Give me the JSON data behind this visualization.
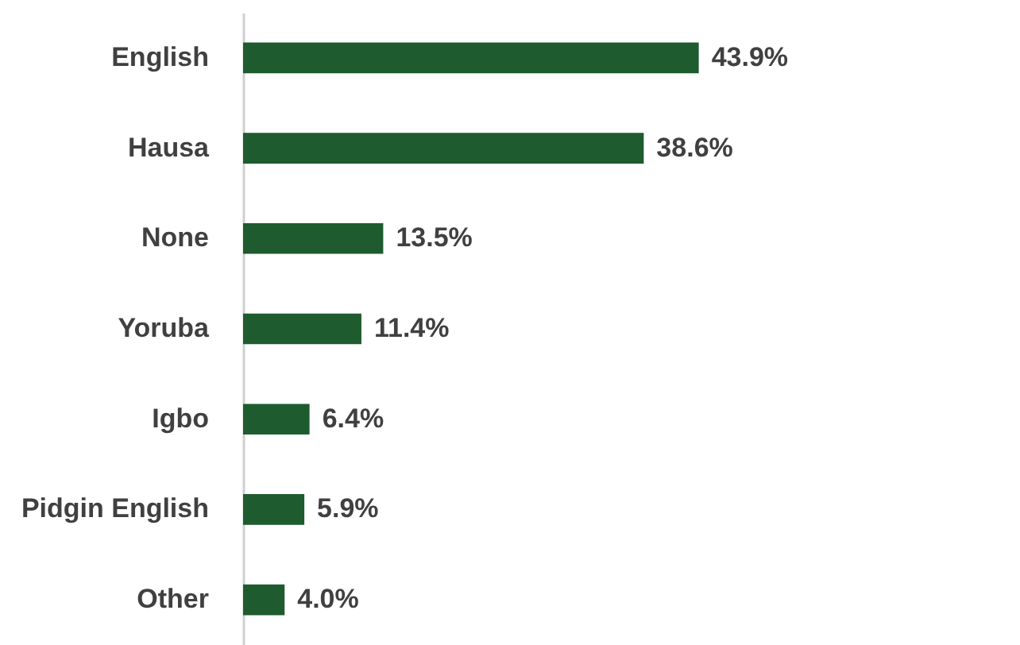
{
  "chart_data": {
    "type": "bar",
    "orientation": "horizontal",
    "categories": [
      "English",
      "Hausa",
      "None",
      "Yoruba",
      "Igbo",
      "Pidgin English",
      "Other"
    ],
    "values": [
      43.9,
      38.6,
      13.5,
      11.4,
      6.4,
      5.9,
      4.0
    ],
    "value_labels": [
      "43.9%",
      "38.6%",
      "13.5%",
      "11.4%",
      "6.4%",
      "5.9%",
      "4.0%"
    ],
    "color": "#1e5b2e",
    "grid": false
  }
}
